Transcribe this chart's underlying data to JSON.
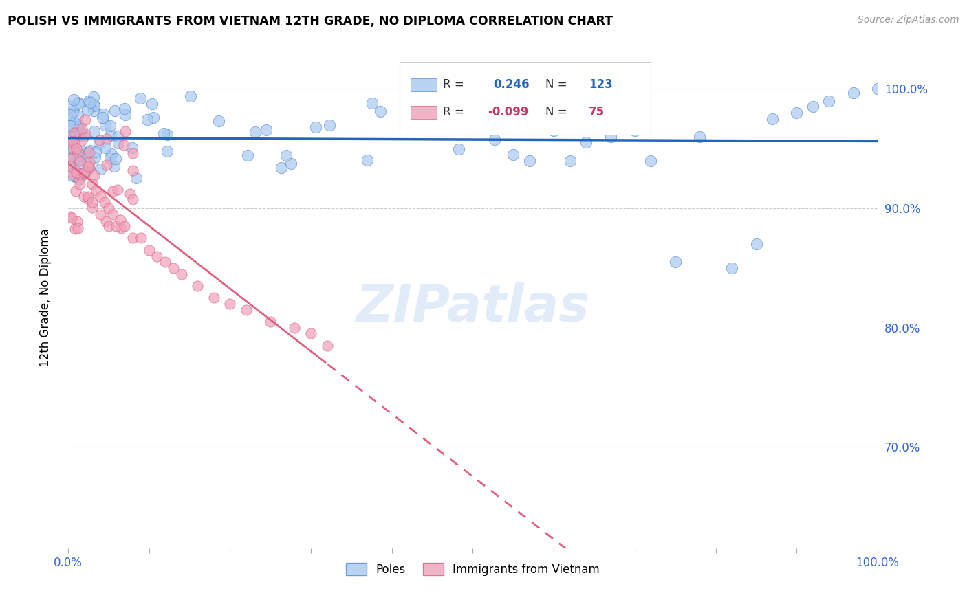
{
  "title": "POLISH VS IMMIGRANTS FROM VIETNAM 12TH GRADE, NO DIPLOMA CORRELATION CHART",
  "source": "Source: ZipAtlas.com",
  "ylabel": "12th Grade, No Diploma",
  "xlim": [
    0.0,
    1.0
  ],
  "ylim": [
    0.615,
    1.035
  ],
  "blue_R": 0.246,
  "blue_N": 123,
  "pink_R": -0.099,
  "pink_N": 75,
  "blue_color": "#A8C8F0",
  "pink_color": "#F0A0B8",
  "blue_edge_color": "#5588CC",
  "pink_edge_color": "#D06080",
  "blue_line_color": "#2266BB",
  "pink_line_color": "#E06080",
  "grid_color": "#CCCCCC",
  "watermark": "ZIPatlas",
  "legend_labels": [
    "Poles",
    "Immigrants from Vietnam"
  ],
  "yticks": [
    0.7,
    0.8,
    0.9,
    1.0
  ],
  "ytick_labels": [
    "70.0%",
    "80.0%",
    "90.0%",
    "100.0%"
  ]
}
